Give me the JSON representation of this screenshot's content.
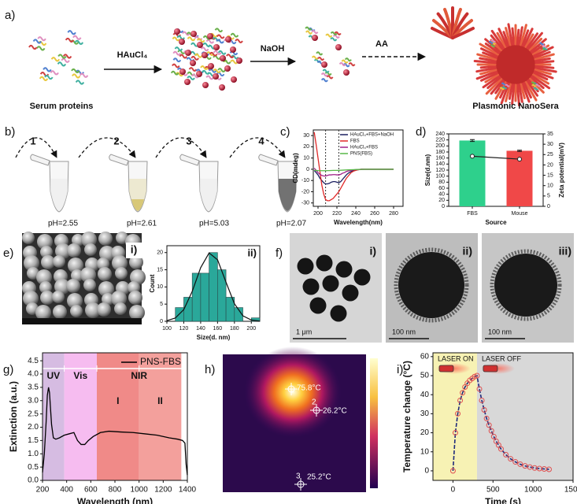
{
  "panel_labels": [
    "a)",
    "b)",
    "c)",
    "d)",
    "e)",
    "f)",
    "g)",
    "h)",
    "i)"
  ],
  "scheme": {
    "reagents": [
      "HAuCl₄",
      "NaOH",
      "AA"
    ],
    "start_label": "Serum proteins",
    "end_label": "Plasmonic NanoSera"
  },
  "tubes": {
    "steps": [
      "1",
      "2",
      "3",
      "4"
    ],
    "ph": [
      "pH=2.55",
      "pH=2.61",
      "pH=5.03",
      "pH=2.07"
    ]
  },
  "sem": {
    "label": "i)"
  },
  "tem": {
    "labels": [
      "i)",
      "ii)",
      "iii)"
    ],
    "scale_bars": [
      "1 μm",
      "100 nm",
      "100 nm"
    ]
  },
  "thermal": {
    "spots": [
      {
        "temp": "75.8°C"
      },
      {
        "id": "2",
        "temp": "26.2°C"
      },
      {
        "id": "3",
        "temp": "25.2°C"
      }
    ]
  },
  "chart_data": [
    {
      "type": "line",
      "x_label": "Wavelength(nm)",
      "y_label": "CD(mdeg)",
      "x": [
        196,
        198,
        200,
        202,
        204,
        206,
        208,
        210,
        212,
        214,
        216,
        218,
        220,
        222,
        224,
        226,
        228,
        230,
        232,
        235,
        238,
        242,
        246,
        250,
        260,
        270,
        280
      ],
      "series": [
        {
          "name": "HAuCl₄+FBS+NaOH",
          "color": "#1c2060",
          "values": [
            -1,
            -3,
            -5,
            -8,
            -10,
            -12,
            -13,
            -13,
            -12.5,
            -11.5,
            -11,
            -11,
            -11.5,
            -12,
            -11,
            -9,
            -7,
            -5,
            -3.5,
            -2,
            -1,
            -0.5,
            0,
            0,
            0,
            0,
            0
          ]
        },
        {
          "name": "FBS",
          "color": "#e02828",
          "values": [
            33,
            22,
            10,
            -2,
            -14,
            -22,
            -27,
            -28,
            -28,
            -27,
            -26,
            -24,
            -22,
            -20,
            -17,
            -14,
            -11,
            -8,
            -6,
            -3,
            -1.5,
            -0.5,
            0,
            0,
            0,
            0,
            0
          ]
        },
        {
          "name": "HAuCl₄+FBS",
          "color": "#a0208a",
          "values": [
            1,
            -1,
            -3,
            -4.5,
            -5.5,
            -6,
            -6,
            -5.5,
            -5,
            -5,
            -4.8,
            -4.8,
            -5,
            -5,
            -4.5,
            -3.5,
            -3,
            -2,
            -1.5,
            -1,
            -0.5,
            -0.2,
            0,
            0,
            0,
            0,
            0
          ]
        },
        {
          "name": "PNS(FBS)",
          "color": "#58b848",
          "values": [
            -1,
            -1,
            -1.2,
            -1.3,
            -1.3,
            -1.3,
            -1.3,
            -1.2,
            -1.2,
            -1.1,
            -1,
            -1,
            -1,
            -1,
            -0.9,
            -0.8,
            -0.7,
            -0.6,
            -0.5,
            -0.4,
            -0.3,
            -0.2,
            -0.1,
            0,
            0,
            0,
            0
          ]
        }
      ],
      "vlines": [
        208,
        222
      ],
      "xlim": [
        195,
        290
      ],
      "xticks": [
        200,
        220,
        240,
        260,
        280
      ],
      "ylim": [
        -33,
        35
      ],
      "yticks": [
        -30,
        -20,
        -10,
        0,
        10,
        20,
        30
      ],
      "legend": "upper right"
    },
    {
      "type": "bar",
      "x_label": "Source",
      "y_label": "Size(d.nm)",
      "y2_label": "Zeta potential(mV)",
      "categories": [
        "FBS",
        "Mouse"
      ],
      "values": [
        218,
        184
      ],
      "errors": [
        3,
        2
      ],
      "colors": [
        "#2ed08c",
        "#f04848"
      ],
      "series": [
        {
          "axis": "y2",
          "color": "#222222",
          "values": [
            24.2,
            22.8
          ]
        }
      ],
      "ylim": [
        0,
        240
      ],
      "yticks": [
        0,
        20,
        40,
        60,
        80,
        100,
        120,
        140,
        160,
        180,
        200,
        220,
        240
      ],
      "y2lim": [
        0,
        35
      ],
      "y2ticks": [
        0,
        5,
        10,
        15,
        20,
        25,
        30,
        35
      ]
    },
    {
      "type": "histogram",
      "label": "ii)",
      "x_label": "Size(d. nm)",
      "y_label": "Count",
      "bins": [
        110,
        120,
        130,
        140,
        150,
        160,
        170,
        180,
        190,
        200,
        210
      ],
      "counts": [
        4,
        7,
        14,
        14,
        20,
        15,
        7,
        4,
        0,
        1
      ],
      "color": "#2aa89a",
      "fit": {
        "x": [
          100,
          110,
          120,
          130,
          140,
          150,
          160,
          170,
          180,
          190,
          200,
          210
        ],
        "y": [
          0.19,
          0.95,
          3.4,
          8.7,
          15.6,
          19.9,
          17.9,
          11.4,
          5.1,
          1.6,
          0.37,
          0.06
        ]
      },
      "xlim": [
        100,
        210
      ],
      "xticks": [
        100,
        120,
        140,
        160,
        180,
        200
      ],
      "ylim": [
        0,
        22
      ],
      "yticks": [
        0,
        5,
        10,
        15,
        20
      ]
    },
    {
      "type": "line",
      "x_label": "Wavelength (nm)",
      "y_label": "Extinction (a.u.)",
      "x": [
        200,
        215,
        230,
        240,
        250,
        258,
        265,
        275,
        290,
        310,
        340,
        380,
        420,
        460,
        490,
        520,
        550,
        580,
        620,
        680,
        750,
        850,
        950,
        1050,
        1150,
        1250,
        1320,
        1360,
        1380,
        1390,
        1400
      ],
      "series": [
        {
          "name": "PNS-FBS",
          "color": "#000000",
          "values": [
            0.3,
            1.0,
            2.2,
            3.2,
            3.5,
            3.3,
            2.8,
            2.1,
            1.6,
            1.55,
            1.6,
            1.7,
            1.75,
            1.8,
            1.5,
            1.35,
            1.35,
            1.5,
            1.65,
            1.8,
            1.85,
            1.82,
            1.8,
            1.75,
            1.7,
            1.6,
            1.55,
            1.5,
            1.4,
            0.6,
            0.2
          ]
        }
      ],
      "regions": [
        {
          "label": "UV",
          "range": [
            200,
            380
          ],
          "color": "#d6bce2"
        },
        {
          "label": "Vis",
          "range": [
            380,
            650
          ],
          "color": "#f6bcf0"
        },
        {
          "label": "I",
          "range": [
            650,
            1000
          ],
          "color": "#f08a88"
        },
        {
          "label": "II",
          "range": [
            1000,
            1350
          ],
          "color": "#f3a09c"
        }
      ],
      "region_group": {
        "label": "NIR",
        "range": [
          650,
          1350
        ]
      },
      "xlim": [
        200,
        1400
      ],
      "xticks": [
        200,
        400,
        600,
        800,
        1000,
        1200,
        1400
      ],
      "ylim": [
        0,
        4.8
      ],
      "yticks": [
        {
          "value": 0,
          "label": "0.0"
        },
        0.5,
        {
          "value": 1,
          "label": "1.0"
        },
        1.5,
        {
          "value": 2,
          "label": "2.0"
        },
        2.5,
        {
          "value": 3,
          "label": "3.0"
        },
        3.5,
        {
          "value": 4,
          "label": "4.0"
        },
        4.5
      ],
      "legend": "upper right"
    },
    {
      "type": "line",
      "x_label": "Time (s)",
      "y_label": "Temperature change (°C)",
      "x": [
        0,
        30,
        60,
        90,
        120,
        150,
        180,
        210,
        240,
        270,
        300,
        330,
        360,
        390,
        420,
        450,
        480,
        510,
        540,
        570,
        600,
        660,
        720,
        780,
        840,
        900,
        960,
        1020,
        1080,
        1140,
        1200
      ],
      "series": [
        {
          "color": "#e05050",
          "line_color": "#1f2a7a",
          "markers": true,
          "values": [
            0,
            20,
            30,
            37,
            41,
            44,
            46,
            47.5,
            48.5,
            49.5,
            50,
            43,
            37,
            32,
            27.5,
            24,
            21,
            18,
            15.5,
            13.5,
            11.5,
            8.5,
            6.3,
            4.7,
            3.5,
            2.6,
            2,
            1.5,
            1.2,
            1,
            0.8
          ]
        }
      ],
      "regions": [
        {
          "label": "LASER ON",
          "range": [
            -250,
            300
          ],
          "color": "#f7f2b4"
        },
        {
          "label": "LASER OFF",
          "range": [
            300,
            1500
          ],
          "color": "#d8d8d8"
        }
      ],
      "xlim": [
        -250,
        1500
      ],
      "xticks": [
        0,
        500,
        1000,
        1500
      ],
      "ylim": [
        -5,
        62
      ],
      "yticks": [
        0,
        10,
        20,
        30,
        40,
        50,
        60
      ]
    }
  ]
}
